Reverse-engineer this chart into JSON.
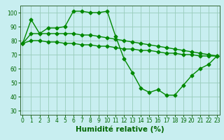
{
  "xlabel": "Humidité relative (%)",
  "background_color": "#c8eef0",
  "grid_color": "#99ccbb",
  "line_color": "#008800",
  "marker": "D",
  "markersize": 2.5,
  "linewidth": 1.0,
  "series1": {
    "x": [
      0,
      1,
      2,
      3,
      4,
      5,
      6,
      7,
      8,
      9,
      10,
      11,
      12,
      13,
      14,
      15,
      16,
      17,
      18,
      19,
      20,
      21,
      22,
      23
    ],
    "y": [
      78,
      95,
      85,
      89,
      89,
      90,
      101,
      101,
      100,
      100,
      101,
      83,
      67,
      57,
      46,
      43,
      45,
      41,
      41,
      48,
      55,
      60,
      63,
      69
    ]
  },
  "series2": {
    "x": [
      0,
      1,
      2,
      3,
      4,
      5,
      6,
      7,
      8,
      9,
      10,
      11,
      12,
      13,
      14,
      15,
      16,
      17,
      18,
      19,
      20,
      21,
      22,
      23
    ],
    "y": [
      78,
      85,
      85,
      85,
      85,
      85,
      85,
      84,
      84,
      83,
      82,
      81,
      80,
      79,
      78,
      77,
      76,
      75,
      74,
      73,
      72,
      71,
      70,
      69
    ]
  },
  "series3": {
    "x": [
      0,
      1,
      2,
      3,
      4,
      5,
      6,
      7,
      8,
      9,
      10,
      11,
      12,
      13,
      14,
      15,
      16,
      17,
      18,
      19,
      20,
      21,
      22,
      23
    ],
    "y": [
      78,
      80,
      80,
      79,
      79,
      78,
      78,
      77,
      77,
      76,
      76,
      75,
      74,
      74,
      73,
      73,
      72,
      71,
      71,
      70,
      70,
      69,
      69,
      69
    ]
  },
  "xlim": [
    -0.3,
    23.3
  ],
  "ylim": [
    27,
    105
  ],
  "yticks": [
    30,
    40,
    50,
    60,
    70,
    80,
    90,
    100
  ],
  "xticks": [
    0,
    1,
    2,
    3,
    4,
    5,
    6,
    7,
    8,
    9,
    10,
    11,
    12,
    13,
    14,
    15,
    16,
    17,
    18,
    19,
    20,
    21,
    22,
    23
  ],
  "tick_fontsize": 5.5,
  "xlabel_fontsize": 7.5
}
